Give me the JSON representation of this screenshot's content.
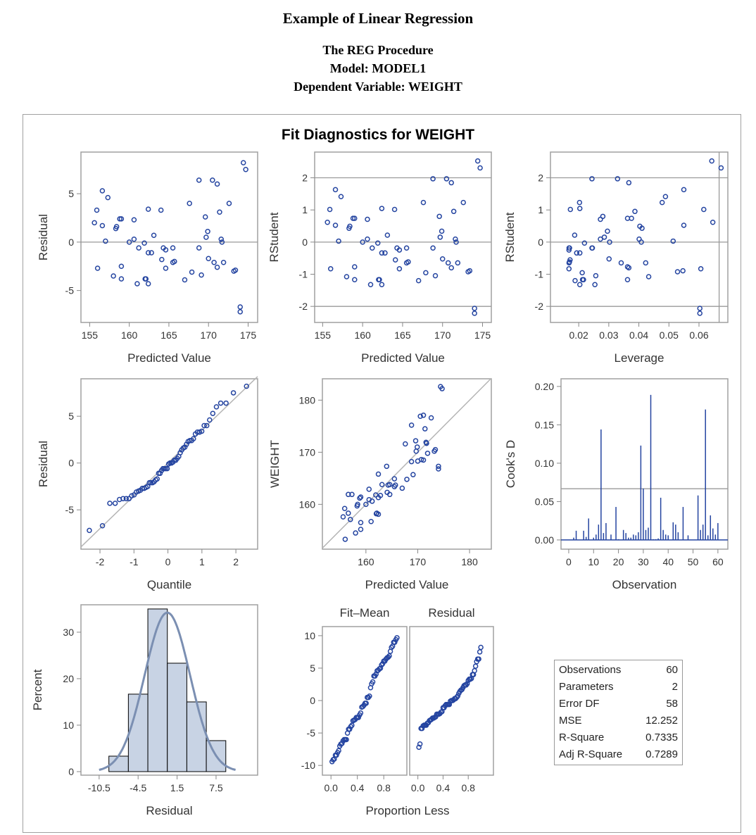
{
  "header": {
    "title": "Example of Linear Regression",
    "procedure": "The REG Procedure",
    "model": "Model: MODEL1",
    "dependent": "Dependent Variable: WEIGHT"
  },
  "panel_title": "Fit Diagnostics for WEIGHT",
  "colors": {
    "marker": "#2444a0",
    "ref": "#9a9a9a",
    "hist_fill": "#c8d3e4",
    "curve": "#7b8fb2"
  },
  "stats": [
    {
      "label": "Observations",
      "value": "60"
    },
    {
      "label": "Parameters",
      "value": "2"
    },
    {
      "label": "Error DF",
      "value": "58"
    },
    {
      "label": "MSE",
      "value": "12.252"
    },
    {
      "label": "R-Square",
      "value": "0.7335"
    },
    {
      "label": "Adj R-Square",
      "value": "0.7289"
    }
  ],
  "chart_data": [
    {
      "type": "scatter",
      "xlabel": "Predicted Value",
      "ylabel": "Residual",
      "xticks": [
        "155",
        "160",
        "165",
        "170",
        "175"
      ],
      "yticks": [
        "-5",
        "0",
        "5"
      ],
      "xlim": [
        153.9,
        176.2
      ],
      "ylim": [
        -8.3,
        9.3
      ],
      "ref_y": [
        0
      ],
      "x": [
        174.4,
        174.7,
        168.8,
        170.5,
        171.1,
        156.6,
        157.3,
        167.6,
        172.6,
        155.9,
        162.4,
        164.0,
        171.4,
        169.6,
        158.8,
        159.0,
        160.6,
        155.6,
        156.6,
        158.4,
        158.3,
        169.9,
        169.7,
        163.1,
        160.6,
        171.6,
        171.7,
        157.0,
        160.0,
        161.9,
        161.2,
        164.3,
        164.6,
        165.5,
        168.8,
        162.4,
        162.8,
        164.1,
        165.5,
        165.7,
        170.0,
        170.7,
        171.9,
        171.1,
        164.6,
        156.0,
        159.0,
        173.2,
        173.4,
        167.9,
        169.1,
        158.0,
        159.0,
        162.0,
        162.1,
        167.0,
        161.0,
        162.4,
        174.0,
        174.0
      ],
      "y": [
        8.2,
        7.5,
        6.4,
        6.4,
        6.0,
        5.3,
        4.6,
        4.0,
        4.0,
        3.3,
        3.4,
        3.3,
        3.1,
        2.6,
        2.4,
        2.4,
        2.3,
        2.0,
        1.7,
        1.6,
        1.4,
        1.1,
        0.5,
        0.7,
        0.3,
        0.3,
        0.0,
        0.1,
        0.0,
        -0.1,
        -0.6,
        -0.6,
        -0.8,
        -0.6,
        -0.6,
        -1.1,
        -1.1,
        -1.8,
        -2.1,
        -2.0,
        -1.7,
        -2.1,
        -2.1,
        -2.6,
        -2.7,
        -2.7,
        -2.5,
        -3.0,
        -2.9,
        -3.1,
        -3.4,
        -3.5,
        -3.8,
        -3.8,
        -3.8,
        -3.9,
        -4.3,
        -4.3,
        -6.7,
        -7.2
      ]
    },
    {
      "type": "scatter",
      "xlabel": "Predicted Value",
      "ylabel": "RStudent",
      "xticks": [
        "155",
        "160",
        "165",
        "170",
        "175"
      ],
      "yticks": [
        "-2",
        "-1",
        "0",
        "1",
        "2"
      ],
      "xlim": [
        154.0,
        176.1
      ],
      "ylim": [
        -2.5,
        2.8
      ],
      "ref_y": [
        -2,
        0,
        2
      ],
      "rstudent_scale": 3.25
    },
    {
      "type": "scatter",
      "xlabel": "Leverage",
      "ylabel": "RStudent",
      "xticks": [
        "0.02",
        "0.03",
        "0.04",
        "0.05",
        "0.06"
      ],
      "yticks": [
        "-2",
        "-1",
        "0",
        "1",
        "2"
      ],
      "xlim": [
        0.0106,
        0.0696
      ],
      "ylim": [
        -2.5,
        2.8
      ],
      "ref_y": [
        -2,
        0,
        2
      ],
      "ref_x": [
        0.0667
      ],
      "sxx": 1850
    },
    {
      "type": "scatter",
      "xlabel": "Quantile",
      "ylabel": "Residual",
      "xticks": [
        "-2",
        "-1",
        "0",
        "1",
        "2"
      ],
      "yticks": [
        "-5",
        "0",
        "5"
      ],
      "xlim": [
        -2.56,
        2.64
      ],
      "ylim": [
        -9.2,
        9.0
      ],
      "ref_slope": 3.5
    },
    {
      "type": "scatter",
      "xlabel": "Predicted Value",
      "ylabel": "WEIGHT",
      "xticks": [
        "160",
        "170",
        "180"
      ],
      "yticks": [
        "160",
        "170",
        "180"
      ],
      "xlim": [
        151.6,
        184.2
      ],
      "ylim": [
        151.4,
        184.1
      ]
    },
    {
      "type": "bar",
      "xlabel": "Observation",
      "ylabel": "Cook's D",
      "xticks": [
        "0",
        "10",
        "20",
        "30",
        "40",
        "50",
        "60"
      ],
      "yticks": [
        "0.00",
        "0.05",
        "0.10",
        "0.15",
        "0.20"
      ],
      "xlim": [
        -3.1,
        64
      ],
      "ylim": [
        -0.012,
        0.21
      ],
      "ref_y": [
        0.0667
      ],
      "obs": [
        2,
        3,
        6,
        7,
        8,
        10,
        11,
        12,
        13,
        14,
        15,
        17,
        19,
        20,
        22,
        23,
        24,
        25,
        26,
        27,
        28,
        29,
        30,
        31,
        32,
        33,
        34,
        35,
        36,
        37,
        38,
        39,
        40,
        42,
        43,
        44,
        46,
        48,
        52,
        53,
        54,
        55,
        56,
        57,
        58,
        59,
        60
      ],
      "values": [
        0.003,
        0.012,
        0.012,
        0.004,
        0.028,
        0.003,
        0.007,
        0.02,
        0.144,
        0.009,
        0.022,
        0.007,
        0.043,
        0.001,
        0.013,
        0.009,
        0.003,
        0.003,
        0.007,
        0.006,
        0.01,
        0.123,
        0.067,
        0.013,
        0.016,
        0.189,
        0.001,
        0.001,
        0.002,
        0.055,
        0.013,
        0.007,
        0.006,
        0.023,
        0.02,
        0.01,
        0.043,
        0.006,
        0.058,
        0.013,
        0.02,
        0.17,
        0.006,
        0.032,
        0.015,
        0.007,
        0.022
      ]
    },
    {
      "type": "bar",
      "xlabel": "Residual",
      "ylabel": "Percent",
      "xticks": [
        "-10.5",
        "-4.5",
        "1.5",
        "7.5"
      ],
      "yticks": [
        "0",
        "10",
        "20",
        "30"
      ],
      "xlim": [
        -13.3,
        13.9
      ],
      "ylim": [
        -0.76,
        35.9
      ],
      "bin_edges": [
        -9,
        -6,
        -3,
        0,
        3,
        6,
        9
      ],
      "values": [
        3.33,
        16.67,
        35.0,
        23.33,
        15.0,
        6.67
      ],
      "normal_mean": 0,
      "normal_sd": 3.5
    },
    {
      "type": "scatter",
      "title": "Fit–Mean",
      "xlabel": "Proportion Less",
      "ylabel": "",
      "xticks": [
        "0.0",
        "0.4",
        "0.8"
      ],
      "yticks": [
        "-10",
        "-5",
        "0",
        "5",
        "10"
      ],
      "xlim": [
        -0.13,
        1.15
      ],
      "ylim": [
        -11.5,
        11.4
      ]
    },
    {
      "type": "scatter",
      "title": "Residual",
      "xlabel": "",
      "ylabel": "",
      "xticks": [
        "0.0",
        "0.4",
        "0.8"
      ],
      "yticks": [],
      "xlim": [
        -0.13,
        1.2
      ],
      "ylim": [
        -11.5,
        11.4
      ]
    }
  ]
}
